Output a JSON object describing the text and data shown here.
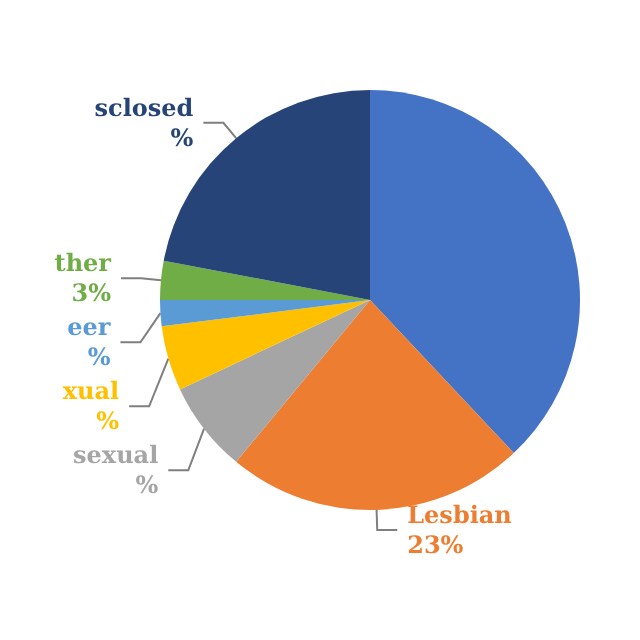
{
  "chart_data": {
    "type": "pie",
    "categories": [
      null,
      "Lesbian",
      "sexual",
      "xual",
      "eer",
      "ther",
      "sclosed"
    ],
    "values": [
      38,
      23,
      7,
      5,
      2,
      3,
      22
    ],
    "value_labels": [
      null,
      "23%",
      "%",
      "%",
      "%",
      "3%",
      "%"
    ],
    "colors": [
      "#4472c4",
      "#ed7d31",
      "#a5a5a5",
      "#ffc000",
      "#5b9bd5",
      "#70ad47",
      "#264478"
    ],
    "legend": false
  }
}
